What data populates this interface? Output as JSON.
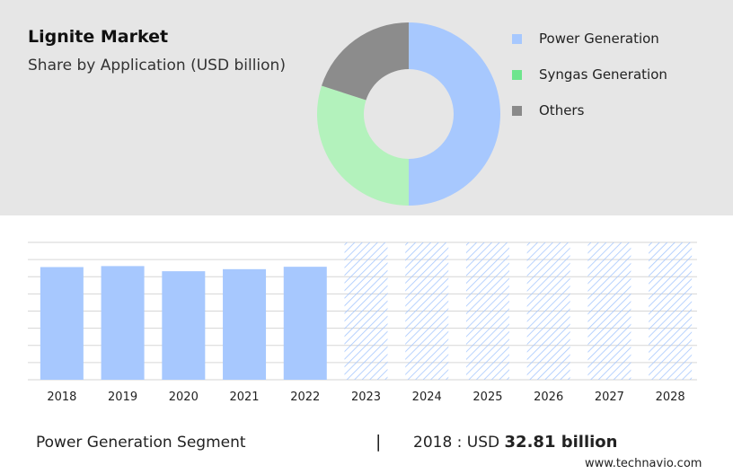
{
  "header": {
    "title": "Lignite Market",
    "subtitle": "Share by Application (USD billion)"
  },
  "legend": [
    {
      "label": "Power Generation",
      "color": "#a7c8fe"
    },
    {
      "label": "Syngas Generation",
      "color": "#6ee58d"
    },
    {
      "label": "Others",
      "color": "#8a8a8a"
    }
  ],
  "chart_data": [
    {
      "type": "pie",
      "variant": "donut",
      "title": "Share by Application (USD billion)",
      "slices": [
        {
          "label": "Power Generation",
          "value": 50,
          "color": "#a7c8fe"
        },
        {
          "label": "Syngas Generation",
          "value": 30,
          "color": "#b3f2bc"
        },
        {
          "label": "Others",
          "value": 20,
          "color": "#8c8c8c"
        }
      ]
    },
    {
      "type": "bar",
      "categories": [
        "2018",
        "2019",
        "2020",
        "2021",
        "2022",
        "2023",
        "2024",
        "2025",
        "2026",
        "2027",
        "2028"
      ],
      "values": [
        32.81,
        33.1,
        31.6,
        32.2,
        32.9,
        null,
        null,
        null,
        null,
        null,
        null
      ],
      "forecast_categories": [
        "2023",
        "2024",
        "2025",
        "2026",
        "2027",
        "2028"
      ],
      "ylim": [
        0,
        40
      ],
      "grid": true,
      "bar_color": "#a7c8fe",
      "forecast_color": "#a7c8fe"
    }
  ],
  "footer": {
    "segment": "Power Generation Segment",
    "separator": "|",
    "value_prefix": "2018 : USD",
    "value": "32.81 billion",
    "site": "www.technavio.com"
  }
}
